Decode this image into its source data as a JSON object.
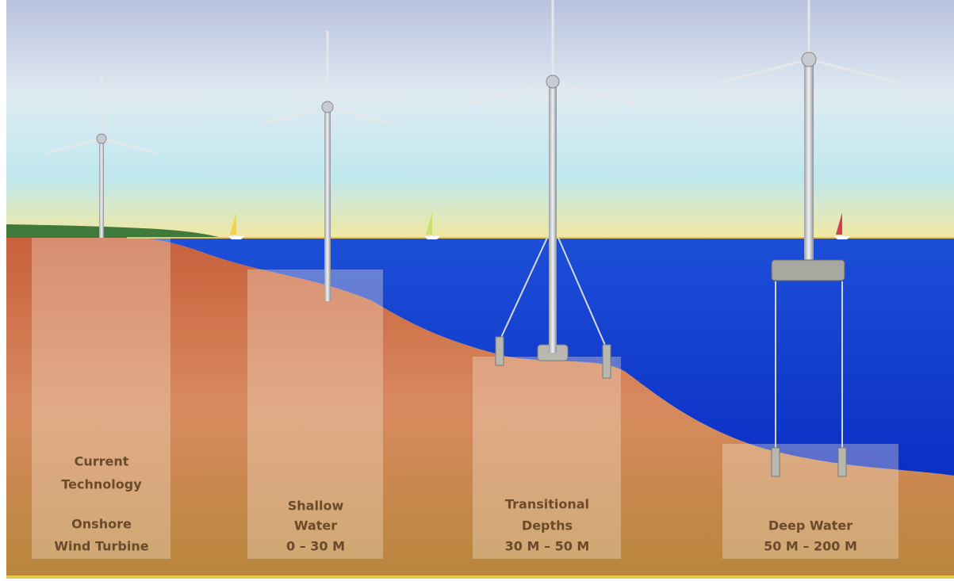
{
  "panels": [
    {
      "heading": [
        "Current",
        "Technology"
      ],
      "detail": [
        "Onshore",
        "Wind Turbine"
      ]
    },
    {
      "heading": [
        "Shallow",
        "Water"
      ],
      "detail": [
        "0 – 30 M"
      ]
    },
    {
      "heading": [
        "Transitional",
        "Depths"
      ],
      "detail": [
        "30 M – 50 M"
      ]
    },
    {
      "heading": [
        "Deep Water"
      ],
      "detail": [
        "50 M – 200 M"
      ]
    }
  ]
}
